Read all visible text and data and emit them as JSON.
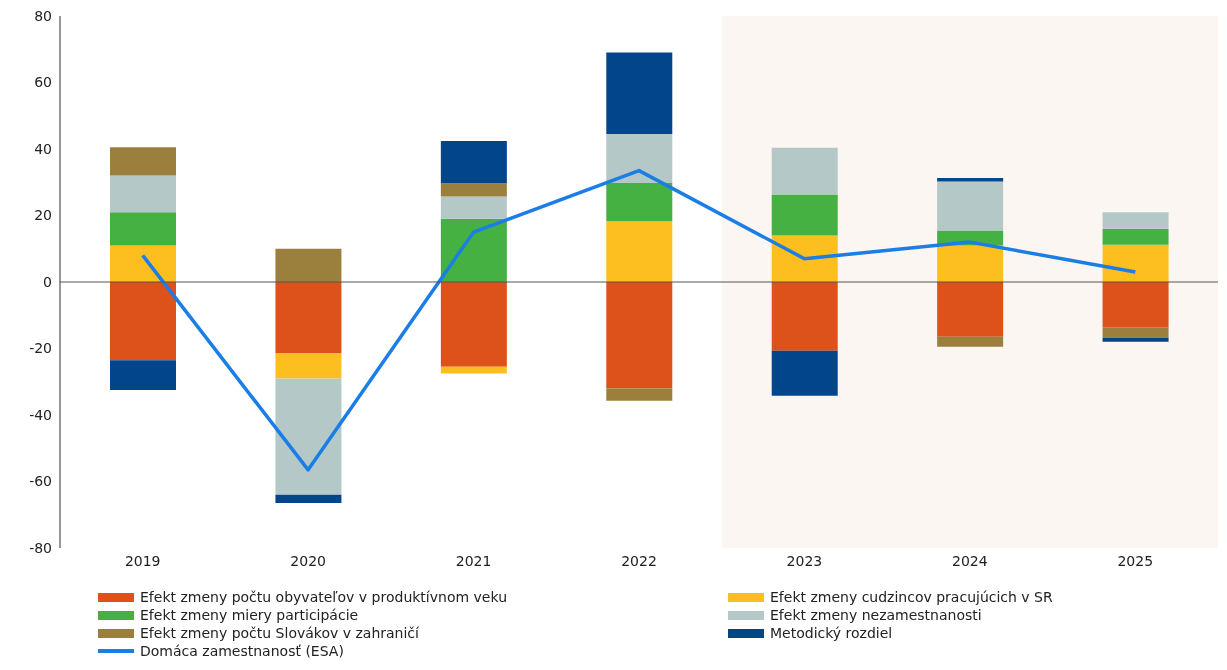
{
  "chart_data": {
    "type": "bar",
    "stacked": true,
    "categories": [
      "2019",
      "2020",
      "2021",
      "2022",
      "2023",
      "2024",
      "2025"
    ],
    "series": [
      {
        "name": "Efekt zmeny počtu obyvateľov v produktívnom veku",
        "color": "#dd521b",
        "values": [
          -23.5,
          -21.5,
          -25.5,
          -32,
          -20.7,
          -16.5,
          -13.6
        ]
      },
      {
        "name": "Efekt zmeny cudzincov pracujúcich v SR",
        "color": "#fdbf1f",
        "values": [
          11,
          -7.5,
          -2,
          18.3,
          14,
          11,
          11.2
        ]
      },
      {
        "name": "Efekt zmeny miery participácie",
        "color": "#45b142",
        "values": [
          10,
          null,
          19,
          11.5,
          12.3,
          4.5,
          4.8
        ]
      },
      {
        "name": "Efekt zmeny nezamestnanosti",
        "color": "#b4c8c8",
        "values": [
          11,
          -35,
          6.7,
          14.7,
          14.1,
          14.7,
          5
        ]
      },
      {
        "name": "Efekt zmeny počtu Slovákov v zahraničí",
        "color": "#9b7f3c",
        "values": [
          8.5,
          10,
          4,
          -3.7,
          null,
          -3,
          -3.2
        ]
      },
      {
        "name": "Metodický rozdiel",
        "color": "#02458b",
        "values": [
          -9,
          -2.5,
          12.7,
          24.5,
          -13.5,
          1.1,
          -1.2
        ]
      },
      {
        "name": "Domáca zamestnanosť (ESA)",
        "type": "line",
        "color": "#1a7ee6",
        "values": [
          8,
          -56.5,
          15,
          33.5,
          7,
          12,
          3
        ]
      }
    ],
    "ylim": [
      -80,
      80
    ],
    "yticks": [
      -80,
      -60,
      -40,
      -20,
      0,
      20,
      40,
      60,
      80
    ],
    "legend": "bottom",
    "marker": "none",
    "line_style": "solid",
    "ref_lines": [
      {
        "axis": "y",
        "value": 0,
        "color": "#555555"
      }
    ],
    "bands": [
      {
        "axis": "x",
        "from": "2023",
        "to": "2025",
        "color": "#fcf6f2"
      }
    ]
  }
}
